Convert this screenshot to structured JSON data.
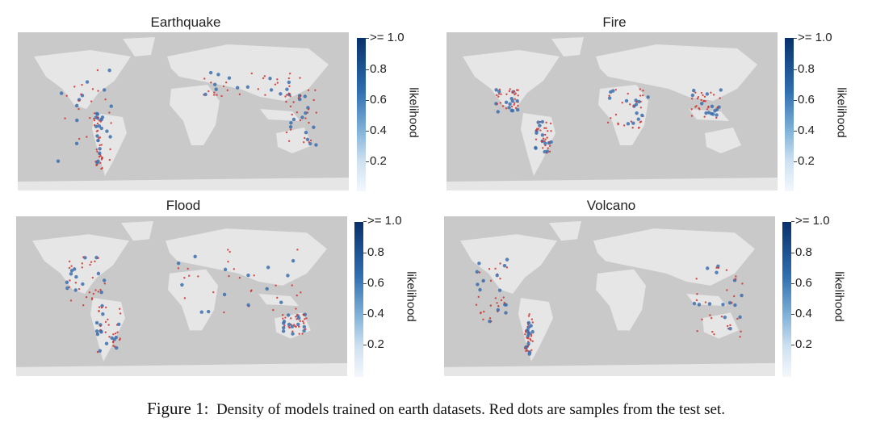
{
  "panels": [
    {
      "title": "Earthquake",
      "colorbar": {
        "label": "likelihood",
        "ticks": [
          ">= 1.0",
          "0.8",
          "0.6",
          "0.4",
          "0.2"
        ]
      }
    },
    {
      "title": "Fire",
      "colorbar": {
        "label": "likelihood",
        "ticks": [
          ">= 1.0",
          "0.8",
          "0.6",
          "0.4",
          "0.2"
        ]
      }
    },
    {
      "title": "Flood",
      "colorbar": {
        "label": "likelihood",
        "ticks": [
          ">= 1.0",
          "0.8",
          "0.6",
          "0.4",
          "0.2"
        ]
      }
    },
    {
      "title": "Volcano",
      "colorbar": {
        "label": "likelihood",
        "ticks": [
          ">= 1.0",
          "0.8",
          "0.6",
          "0.4",
          "0.2"
        ]
      }
    }
  ],
  "caption": {
    "label": "Figure 1:",
    "text": "Density of models trained on earth datasets. Red dots are samples from the test set."
  },
  "colors": {
    "ocean": "#c9c9c9",
    "land": "#e8e8e8",
    "sample": "#d0312d",
    "density_high": "#08306b",
    "density_low": "#f4f8fc"
  }
}
